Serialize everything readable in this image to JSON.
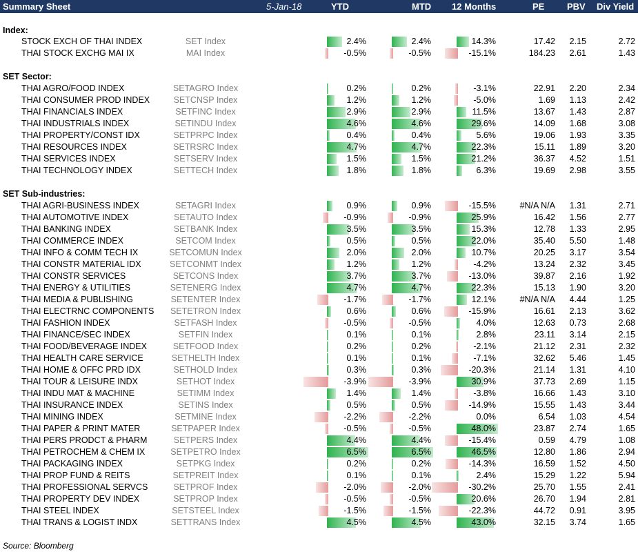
{
  "header": {
    "title": "Summary Sheet",
    "date": "5-Jan-18",
    "columns": [
      "YTD",
      "MTD",
      "12 Months",
      "PE",
      "PBV",
      "Div Yield"
    ]
  },
  "sections": [
    {
      "title": "Index:",
      "rows": [
        {
          "name": "STOCK EXCH OF THAI INDEX",
          "ticker": "SET Index",
          "ytd": "2.4%",
          "ytd_v": 2.4,
          "mtd": "2.4%",
          "mtd_v": 2.4,
          "m12": "14.3%",
          "m12_v": 14.3,
          "pe": "17.42",
          "pbv": "2.15",
          "dy": "2.72"
        },
        {
          "name": "THAI STOCK EXCHG MAI IX",
          "ticker": "MAI Index",
          "ytd": "-0.5%",
          "ytd_v": -0.5,
          "mtd": "-0.5%",
          "mtd_v": -0.5,
          "m12": "-15.1%",
          "m12_v": -15.1,
          "pe": "184.23",
          "pbv": "2.61",
          "dy": "1.43"
        }
      ]
    },
    {
      "title": "SET Sector:",
      "rows": [
        {
          "name": "THAI AGRO/FOOD INDEX",
          "ticker": "SETAGRO Index",
          "ytd": "0.2%",
          "ytd_v": 0.2,
          "mtd": "0.2%",
          "mtd_v": 0.2,
          "m12": "-3.1%",
          "m12_v": -3.1,
          "pe": "22.91",
          "pbv": "2.20",
          "dy": "2.34"
        },
        {
          "name": "THAI CONSUMER PROD INDEX",
          "ticker": "SETCNSP Index",
          "ytd": "1.2%",
          "ytd_v": 1.2,
          "mtd": "1.2%",
          "mtd_v": 1.2,
          "m12": "-5.0%",
          "m12_v": -5.0,
          "pe": "1.69",
          "pbv": "1.13",
          "dy": "2.42"
        },
        {
          "name": "THAI FINANCIALS INDEX",
          "ticker": "SETFINC Index",
          "ytd": "2.9%",
          "ytd_v": 2.9,
          "mtd": "2.9%",
          "mtd_v": 2.9,
          "m12": "11.5%",
          "m12_v": 11.5,
          "pe": "13.67",
          "pbv": "1.43",
          "dy": "2.87"
        },
        {
          "name": "THAI INDUSTRIALS INDEX",
          "ticker": "SETINDU Index",
          "ytd": "4.6%",
          "ytd_v": 4.6,
          "mtd": "4.6%",
          "mtd_v": 4.6,
          "m12": "29.6%",
          "m12_v": 29.6,
          "pe": "14.09",
          "pbv": "1.68",
          "dy": "3.08"
        },
        {
          "name": "THAI PROPERTY/CONST IDX",
          "ticker": "SETPRPC Index",
          "ytd": "0.4%",
          "ytd_v": 0.4,
          "mtd": "0.4%",
          "mtd_v": 0.4,
          "m12": "5.6%",
          "m12_v": 5.6,
          "pe": "19.06",
          "pbv": "1.93",
          "dy": "3.35"
        },
        {
          "name": "THAI RESOURCES INDEX",
          "ticker": "SETRSRC Index",
          "ytd": "4.7%",
          "ytd_v": 4.7,
          "mtd": "4.7%",
          "mtd_v": 4.7,
          "m12": "22.3%",
          "m12_v": 22.3,
          "pe": "15.11",
          "pbv": "1.89",
          "dy": "3.20"
        },
        {
          "name": "THAI SERVICES INDEX",
          "ticker": "SETSERV Index",
          "ytd": "1.5%",
          "ytd_v": 1.5,
          "mtd": "1.5%",
          "mtd_v": 1.5,
          "m12": "21.2%",
          "m12_v": 21.2,
          "pe": "36.37",
          "pbv": "4.52",
          "dy": "1.51"
        },
        {
          "name": "THAI TECHNOLOGY INDEX",
          "ticker": "SETTECH Index",
          "ytd": "1.8%",
          "ytd_v": 1.8,
          "mtd": "1.8%",
          "mtd_v": 1.8,
          "m12": "6.3%",
          "m12_v": 6.3,
          "pe": "19.69",
          "pbv": "2.98",
          "dy": "3.55"
        }
      ]
    },
    {
      "title": "SET Sub-industries:",
      "rows": [
        {
          "name": "THAI AGRI-BUSINESS INDEX",
          "ticker": "SETAGRI Index",
          "ytd": "0.9%",
          "ytd_v": 0.9,
          "mtd": "0.9%",
          "mtd_v": 0.9,
          "m12": "-15.5%",
          "m12_v": -15.5,
          "pe": "#N/A N/A",
          "pbv": "1.31",
          "dy": "2.71"
        },
        {
          "name": "THAI AUTOMOTIVE INDEX",
          "ticker": "SETAUTO Index",
          "ytd": "-0.9%",
          "ytd_v": -0.9,
          "mtd": "-0.9%",
          "mtd_v": -0.9,
          "m12": "25.9%",
          "m12_v": 25.9,
          "pe": "16.42",
          "pbv": "1.56",
          "dy": "2.77"
        },
        {
          "name": "THAI BANKING INDEX",
          "ticker": "SETBANK Index",
          "ytd": "3.5%",
          "ytd_v": 3.5,
          "mtd": "3.5%",
          "mtd_v": 3.5,
          "m12": "15.3%",
          "m12_v": 15.3,
          "pe": "12.78",
          "pbv": "1.33",
          "dy": "2.95"
        },
        {
          "name": "THAI COMMERCE INDEX",
          "ticker": "SETCOM Index",
          "ytd": "0.5%",
          "ytd_v": 0.5,
          "mtd": "0.5%",
          "mtd_v": 0.5,
          "m12": "22.0%",
          "m12_v": 22.0,
          "pe": "35.40",
          "pbv": "5.50",
          "dy": "1.48"
        },
        {
          "name": "THAI INFO & COMM TECH IX",
          "ticker": "SETCOMUN Index",
          "ytd": "2.0%",
          "ytd_v": 2.0,
          "mtd": "2.0%",
          "mtd_v": 2.0,
          "m12": "10.7%",
          "m12_v": 10.7,
          "pe": "20.25",
          "pbv": "3.17",
          "dy": "3.54"
        },
        {
          "name": "THAI CONSTR MATERIAL IDX",
          "ticker": "SETCONMT Index",
          "ytd": "1.2%",
          "ytd_v": 1.2,
          "mtd": "1.2%",
          "mtd_v": 1.2,
          "m12": "-4.2%",
          "m12_v": -4.2,
          "pe": "13.24",
          "pbv": "2.32",
          "dy": "3.45"
        },
        {
          "name": "THAI CONSTR SERVICES",
          "ticker": "SETCONS Index",
          "ytd": "3.7%",
          "ytd_v": 3.7,
          "mtd": "3.7%",
          "mtd_v": 3.7,
          "m12": "-13.0%",
          "m12_v": -13.0,
          "pe": "39.87",
          "pbv": "2.16",
          "dy": "1.92"
        },
        {
          "name": "THAI ENERGY & UTILITIES",
          "ticker": "SETENERG Index",
          "ytd": "4.7%",
          "ytd_v": 4.7,
          "mtd": "4.7%",
          "mtd_v": 4.7,
          "m12": "22.3%",
          "m12_v": 22.3,
          "pe": "15.13",
          "pbv": "1.90",
          "dy": "3.20"
        },
        {
          "name": "THAI MEDIA & PUBLISHING",
          "ticker": "SETENTER Index",
          "ytd": "-1.7%",
          "ytd_v": -1.7,
          "mtd": "-1.7%",
          "mtd_v": -1.7,
          "m12": "12.1%",
          "m12_v": 12.1,
          "pe": "#N/A N/A",
          "pbv": "4.44",
          "dy": "1.25"
        },
        {
          "name": "THAI ELECTRNC COMPONENTS",
          "ticker": "SETETRON Index",
          "ytd": "0.6%",
          "ytd_v": 0.6,
          "mtd": "0.6%",
          "mtd_v": 0.6,
          "m12": "-15.9%",
          "m12_v": -15.9,
          "pe": "16.61",
          "pbv": "2.13",
          "dy": "3.62"
        },
        {
          "name": "THAI FASHION INDEX",
          "ticker": "SETFASH Index",
          "ytd": "-0.5%",
          "ytd_v": -0.5,
          "mtd": "-0.5%",
          "mtd_v": -0.5,
          "m12": "4.0%",
          "m12_v": 4.0,
          "pe": "12.63",
          "pbv": "0.73",
          "dy": "2.68"
        },
        {
          "name": "THAI FINANCE/SEC INDEX",
          "ticker": "SETFIN Index",
          "ytd": "0.1%",
          "ytd_v": 0.1,
          "mtd": "0.1%",
          "mtd_v": 0.1,
          "m12": "2.8%",
          "m12_v": 2.8,
          "pe": "23.11",
          "pbv": "3.14",
          "dy": "2.15"
        },
        {
          "name": "THAI FOOD/BEVERAGE INDEX",
          "ticker": "SETFOOD Index",
          "ytd": "0.2%",
          "ytd_v": 0.2,
          "mtd": "0.2%",
          "mtd_v": 0.2,
          "m12": "-2.1%",
          "m12_v": -2.1,
          "pe": "21.12",
          "pbv": "2.31",
          "dy": "2.32"
        },
        {
          "name": "THAI HEALTH CARE SERVICE",
          "ticker": "SETHELTH Index",
          "ytd": "0.1%",
          "ytd_v": 0.1,
          "mtd": "0.1%",
          "mtd_v": 0.1,
          "m12": "-7.1%",
          "m12_v": -7.1,
          "pe": "32.62",
          "pbv": "5.46",
          "dy": "1.45"
        },
        {
          "name": "THAI HOME & OFFC PRD IDX",
          "ticker": "SETHOLD Index",
          "ytd": "0.3%",
          "ytd_v": 0.3,
          "mtd": "0.3%",
          "mtd_v": 0.3,
          "m12": "-20.3%",
          "m12_v": -20.3,
          "pe": "21.14",
          "pbv": "1.31",
          "dy": "4.10"
        },
        {
          "name": "THAI TOUR & LEISURE INDX",
          "ticker": "SETHOT Index",
          "ytd": "-3.9%",
          "ytd_v": -3.9,
          "mtd": "-3.9%",
          "mtd_v": -3.9,
          "m12": "30.9%",
          "m12_v": 30.9,
          "pe": "37.73",
          "pbv": "2.69",
          "dy": "1.15"
        },
        {
          "name": "THAI INDU MAT & MACHINE",
          "ticker": "SETIMM Index",
          "ytd": "1.4%",
          "ytd_v": 1.4,
          "mtd": "1.4%",
          "mtd_v": 1.4,
          "m12": "-3.8%",
          "m12_v": -3.8,
          "pe": "16.66",
          "pbv": "1.43",
          "dy": "3.10"
        },
        {
          "name": "THAI INSURANCE INDEX",
          "ticker": "SETINS Index",
          "ytd": "0.5%",
          "ytd_v": 0.5,
          "mtd": "0.5%",
          "mtd_v": 0.5,
          "m12": "-14.9%",
          "m12_v": -14.9,
          "pe": "15.55",
          "pbv": "1.43",
          "dy": "3.44"
        },
        {
          "name": "THAI MINING INDEX",
          "ticker": "SETMINE Index",
          "ytd": "-2.2%",
          "ytd_v": -2.2,
          "mtd": "-2.2%",
          "mtd_v": -2.2,
          "m12": "0.0%",
          "m12_v": 0.0,
          "pe": "6.54",
          "pbv": "1.03",
          "dy": "4.54"
        },
        {
          "name": "THAI PAPER & PRINT MATER",
          "ticker": "SETPAPER Index",
          "ytd": "-0.5%",
          "ytd_v": -0.5,
          "mtd": "-0.5%",
          "mtd_v": -0.5,
          "m12": "48.0%",
          "m12_v": 48.0,
          "pe": "23.87",
          "pbv": "2.74",
          "dy": "1.65"
        },
        {
          "name": "THAI PERS PRODCT & PHARM",
          "ticker": "SETPERS Index",
          "ytd": "4.4%",
          "ytd_v": 4.4,
          "mtd": "4.4%",
          "mtd_v": 4.4,
          "m12": "-15.4%",
          "m12_v": -15.4,
          "pe": "0.59",
          "pbv": "4.79",
          "dy": "1.08"
        },
        {
          "name": "THAI PETROCHEM & CHEM IX",
          "ticker": "SETPETRO Index",
          "ytd": "6.5%",
          "ytd_v": 6.5,
          "mtd": "6.5%",
          "mtd_v": 6.5,
          "m12": "46.5%",
          "m12_v": 46.5,
          "pe": "12.80",
          "pbv": "1.86",
          "dy": "2.94"
        },
        {
          "name": "THAI PACKAGING INDEX",
          "ticker": "SETPKG Index",
          "ytd": "0.2%",
          "ytd_v": 0.2,
          "mtd": "0.2%",
          "mtd_v": 0.2,
          "m12": "-14.3%",
          "m12_v": -14.3,
          "pe": "16.59",
          "pbv": "1.52",
          "dy": "4.50"
        },
        {
          "name": "THAI PROP FUND & REITS",
          "ticker": "SETPREIT Index",
          "ytd": "0.1%",
          "ytd_v": 0.1,
          "mtd": "0.1%",
          "mtd_v": 0.1,
          "m12": "2.4%",
          "m12_v": 2.4,
          "pe": "15.29",
          "pbv": "1.22",
          "dy": "5.94"
        },
        {
          "name": "THAI PROFESSIONAL SERVCS",
          "ticker": "SETPROF Index",
          "ytd": "-2.0%",
          "ytd_v": -2.0,
          "mtd": "-2.0%",
          "mtd_v": -2.0,
          "m12": "-30.2%",
          "m12_v": -30.2,
          "pe": "25.70",
          "pbv": "1.55",
          "dy": "2.41"
        },
        {
          "name": "THAI PROPERTY DEV INDEX",
          "ticker": "SETPROP Index",
          "ytd": "-0.5%",
          "ytd_v": -0.5,
          "mtd": "-0.5%",
          "mtd_v": -0.5,
          "m12": "20.6%",
          "m12_v": 20.6,
          "pe": "26.70",
          "pbv": "1.94",
          "dy": "2.81"
        },
        {
          "name": "THAI STEEL INDEX",
          "ticker": "SETSTEEL Index",
          "ytd": "-1.5%",
          "ytd_v": -1.5,
          "mtd": "-1.5%",
          "mtd_v": -1.5,
          "m12": "-22.3%",
          "m12_v": -22.3,
          "pe": "44.72",
          "pbv": "0.91",
          "dy": "3.95"
        },
        {
          "name": "THAI TRANS & LOGIST INDX",
          "ticker": "SETTRANS Index",
          "ytd": "4.5%",
          "ytd_v": 4.5,
          "mtd": "4.5%",
          "mtd_v": 4.5,
          "m12": "43.0%",
          "m12_v": 43.0,
          "pe": "32.15",
          "pbv": "3.74",
          "dy": "1.65"
        }
      ]
    }
  ],
  "footer": {
    "source": "Source: Bloomberg"
  },
  "colors": {
    "header_bg": "#1f3864",
    "positive_bar": "#2fb34f",
    "negative_bar": "#e59a9a",
    "ticker_text": "#7f7f7f"
  }
}
